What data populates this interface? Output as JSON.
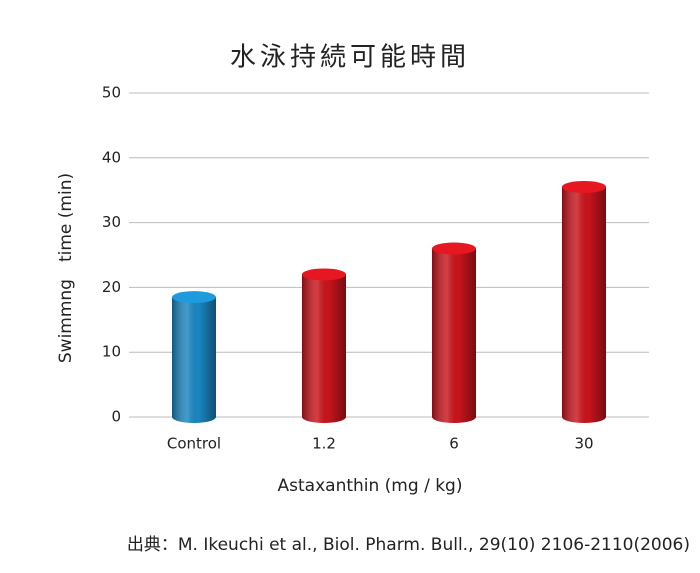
{
  "chart_data": {
    "type": "bar",
    "title": "水泳持続可能時間",
    "x_label": "Astaxanthin (mg / kg)",
    "y_label": "Swimmng　time (min)",
    "categories": [
      "Control",
      "1.2",
      "6",
      "30"
    ],
    "values": [
      18.5,
      22,
      26,
      35.5
    ],
    "colors": [
      "#1a86c0",
      "#c8141c",
      "#c8141c",
      "#c8141c"
    ],
    "ylim": [
      0,
      50
    ],
    "yticks": [
      0,
      10,
      20,
      30,
      40,
      50
    ],
    "grid": true,
    "source": "出典：M. Ikeuchi et al., Biol. Pharm. Bull., 29(10) 2106-2110(2006)"
  }
}
